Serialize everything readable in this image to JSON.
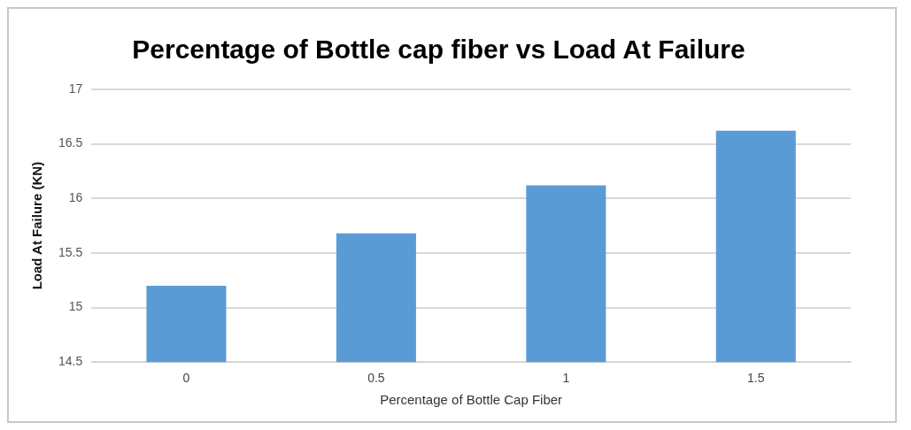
{
  "chart_data": {
    "type": "bar",
    "title": "Percentage of Bottle cap fiber vs Load At Failure",
    "xlabel": "Percentage of Bottle Cap Fiber",
    "ylabel": "Load At Failure (KN)",
    "categories": [
      "0",
      "0.5",
      "1",
      "1.5"
    ],
    "values": [
      15.2,
      15.68,
      16.12,
      16.62
    ],
    "color": "#5b9bd5",
    "ylim": [
      14.5,
      17
    ],
    "yticks": [
      14.5,
      15,
      15.5,
      16,
      16.5,
      17
    ],
    "grid": "y",
    "legend": false
  }
}
